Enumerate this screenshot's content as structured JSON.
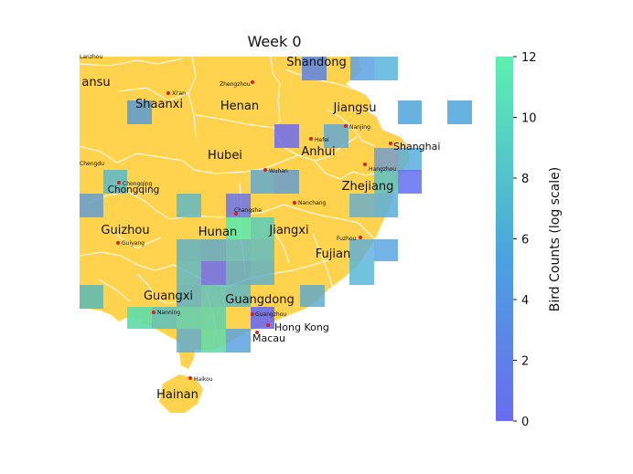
{
  "title": "Week 0",
  "colors": {
    "land": "#ffd34d",
    "border": "#ffffff",
    "city_dot": "#d62020",
    "cmap_low": "#6b6bf0",
    "cmap_mid": "#4aa3e0",
    "cmap_high": "#5ef0b0"
  },
  "colorbar": {
    "label": "Bird Counts (log scale)",
    "ticks": [
      "0",
      "2",
      "4",
      "6",
      "8",
      "10",
      "12"
    ],
    "min": 0,
    "max": 12
  },
  "provinces": [
    {
      "name": "Shandong",
      "size": "big"
    },
    {
      "name": "ansu",
      "size": "big"
    },
    {
      "name": "Shaanxi",
      "size": "big"
    },
    {
      "name": "Henan",
      "size": "big"
    },
    {
      "name": "Jiangsu",
      "size": "big"
    },
    {
      "name": "Anhui",
      "size": "big"
    },
    {
      "name": "Hubei",
      "size": "big"
    },
    {
      "name": "Chongqing",
      "size": "mid"
    },
    {
      "name": "Zhejiang",
      "size": "big"
    },
    {
      "name": "Guizhou",
      "size": "big"
    },
    {
      "name": "Hunan",
      "size": "big"
    },
    {
      "name": "Jiangxi",
      "size": "big"
    },
    {
      "name": "Fujian",
      "size": "big"
    },
    {
      "name": "Guangxi",
      "size": "big"
    },
    {
      "name": "Guangdong",
      "size": "big"
    },
    {
      "name": "Hainan",
      "size": "big"
    }
  ],
  "cities": [
    {
      "name": "Lanzhou"
    },
    {
      "name": "Xi'an"
    },
    {
      "name": "Zhengzhou"
    },
    {
      "name": "Nanjing"
    },
    {
      "name": "Hefei"
    },
    {
      "name": "Shanghai"
    },
    {
      "name": "Chengdu"
    },
    {
      "name": "Wuhan"
    },
    {
      "name": "Hangzhou"
    },
    {
      "name": "Chongqing"
    },
    {
      "name": "Changsha"
    },
    {
      "name": "Nanchang"
    },
    {
      "name": "Guiyang"
    },
    {
      "name": "Fuzhou"
    },
    {
      "name": "Nanning"
    },
    {
      "name": "Guangzhou"
    },
    {
      "name": "Hong Kong"
    },
    {
      "name": "Macau"
    },
    {
      "name": "Haikou"
    }
  ]
}
